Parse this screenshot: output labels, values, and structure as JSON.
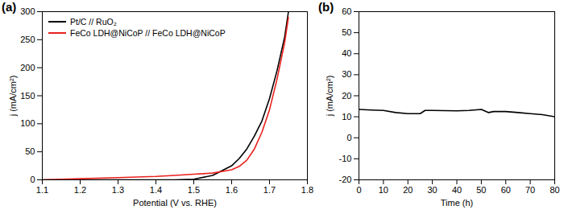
{
  "chart_data": [
    {
      "type": "line",
      "title": "(a)",
      "x_label": "Potential (V vs. RHE)",
      "y_label": "j (mA/cm²)",
      "x": [
        1.1,
        1.2,
        1.3,
        1.4,
        1.45,
        1.5,
        1.55,
        1.6,
        1.62,
        1.64,
        1.66,
        1.68,
        1.7,
        1.72,
        1.74,
        1.75
      ],
      "series": [
        {
          "name": "Pt/C // RuO₂",
          "color": "#000000",
          "values": [
            0,
            0,
            0,
            0,
            0,
            1,
            8,
            25,
            38,
            55,
            78,
            105,
            145,
            195,
            255,
            300
          ]
        },
        {
          "name": "FeCo LDH@NiCoP // FeCo LDH@NiCoP",
          "color": "#e8211d",
          "values": [
            0,
            2,
            4,
            6,
            8,
            10,
            12,
            18,
            24,
            35,
            55,
            85,
            125,
            180,
            245,
            290
          ]
        }
      ],
      "xlim": [
        1.1,
        1.8
      ],
      "xticks": [
        1.1,
        1.2,
        1.3,
        1.4,
        1.5,
        1.6,
        1.7,
        1.8
      ],
      "ylim": [
        0,
        300
      ],
      "yticks": [
        0,
        50,
        100,
        150,
        200,
        250,
        300
      ],
      "legend": "upper left"
    },
    {
      "type": "line",
      "title": "(b)",
      "x_label": "Time (h)",
      "y_label": "j (mA/cm²)",
      "x": [
        0,
        5,
        10,
        15,
        20,
        25,
        27,
        30,
        40,
        45,
        50,
        53,
        55,
        60,
        65,
        70,
        75,
        80
      ],
      "values": [
        13.5,
        13.2,
        13,
        12,
        11.5,
        11.5,
        13,
        13,
        12.8,
        13,
        13.5,
        12,
        12.5,
        12.5,
        12,
        11.5,
        11,
        10
      ],
      "color": "#000000",
      "xlim": [
        0,
        80
      ],
      "xticks": [
        0,
        10,
        20,
        30,
        40,
        50,
        60,
        70,
        80
      ],
      "ylim": [
        -20,
        60
      ],
      "yticks": [
        -20,
        -10,
        0,
        10,
        20,
        30,
        40,
        50,
        60
      ]
    }
  ]
}
